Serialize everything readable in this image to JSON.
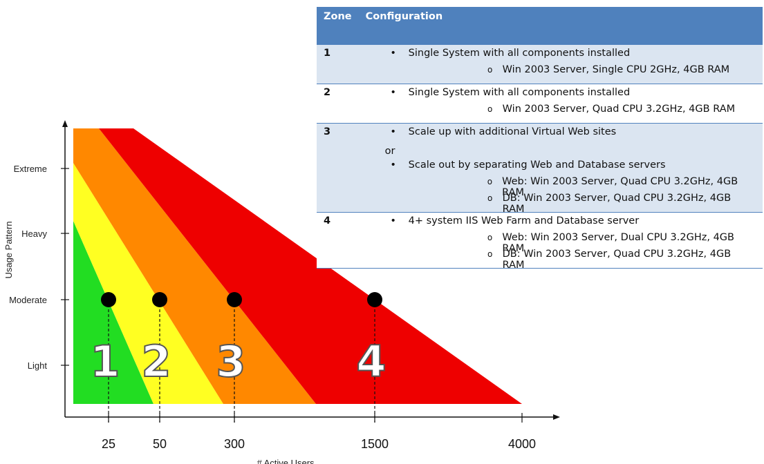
{
  "table": {
    "headers": {
      "zone": "Zone",
      "configuration": "Configuration"
    },
    "rows": [
      {
        "zone": "1",
        "lines": [
          {
            "kind": "bullet",
            "marker": "•",
            "text": "Single System with all components installed"
          },
          {
            "kind": "sub",
            "marker": "o",
            "text": "Win 2003 Server, Single CPU 2GHz, 4GB RAM"
          }
        ]
      },
      {
        "zone": "2",
        "lines": [
          {
            "kind": "bullet",
            "marker": "•",
            "text": "Single System with all components installed"
          },
          {
            "kind": "sub",
            "marker": "o",
            "text": "Win 2003 Server, Quad CPU 3.2GHz, 4GB RAM"
          }
        ]
      },
      {
        "zone": "3",
        "lines": [
          {
            "kind": "bullet",
            "marker": "•",
            "text": "Scale up with additional Virtual Web sites"
          },
          {
            "kind": "conj",
            "text": "or"
          },
          {
            "kind": "bullet",
            "marker": "•",
            "text": "Scale out by separating Web and Database servers"
          },
          {
            "kind": "sub",
            "marker": "o",
            "text": "Web: Win 2003 Server, Quad CPU 3.2GHz, 4GB RAM"
          },
          {
            "kind": "sub",
            "marker": "o",
            "text": "DB: Win 2003 Server, Quad CPU 3.2GHz, 4GB RAM"
          }
        ]
      },
      {
        "zone": "4",
        "lines": [
          {
            "kind": "bullet",
            "marker": "•",
            "text": "4+ system IIS Web Farm and Database server"
          },
          {
            "kind": "sub",
            "marker": "o",
            "text": "Web: Win 2003 Server, Dual CPU 3.2GHz, 4GB RAM"
          },
          {
            "kind": "sub",
            "marker": "o",
            "text": "DB: Win 2003 Server, Quad CPU 3.2GHz, 4GB RAM"
          }
        ]
      }
    ]
  },
  "diagram": {
    "y_axis_label": "Usage Pattern",
    "x_axis_label": "# Active Users",
    "usage_levels": [
      "Light",
      "Moderate",
      "Heavy",
      "Extreme"
    ],
    "user_ticks": [
      "25",
      "50",
      "300",
      "1500",
      "4000"
    ],
    "zones": [
      {
        "label": "1",
        "color": "#22dd22"
      },
      {
        "label": "2",
        "color": "#ffff22"
      },
      {
        "label": "3",
        "color": "#ff8800"
      },
      {
        "label": "4",
        "color": "#ee0000"
      }
    ],
    "marker_level": "Moderate"
  }
}
